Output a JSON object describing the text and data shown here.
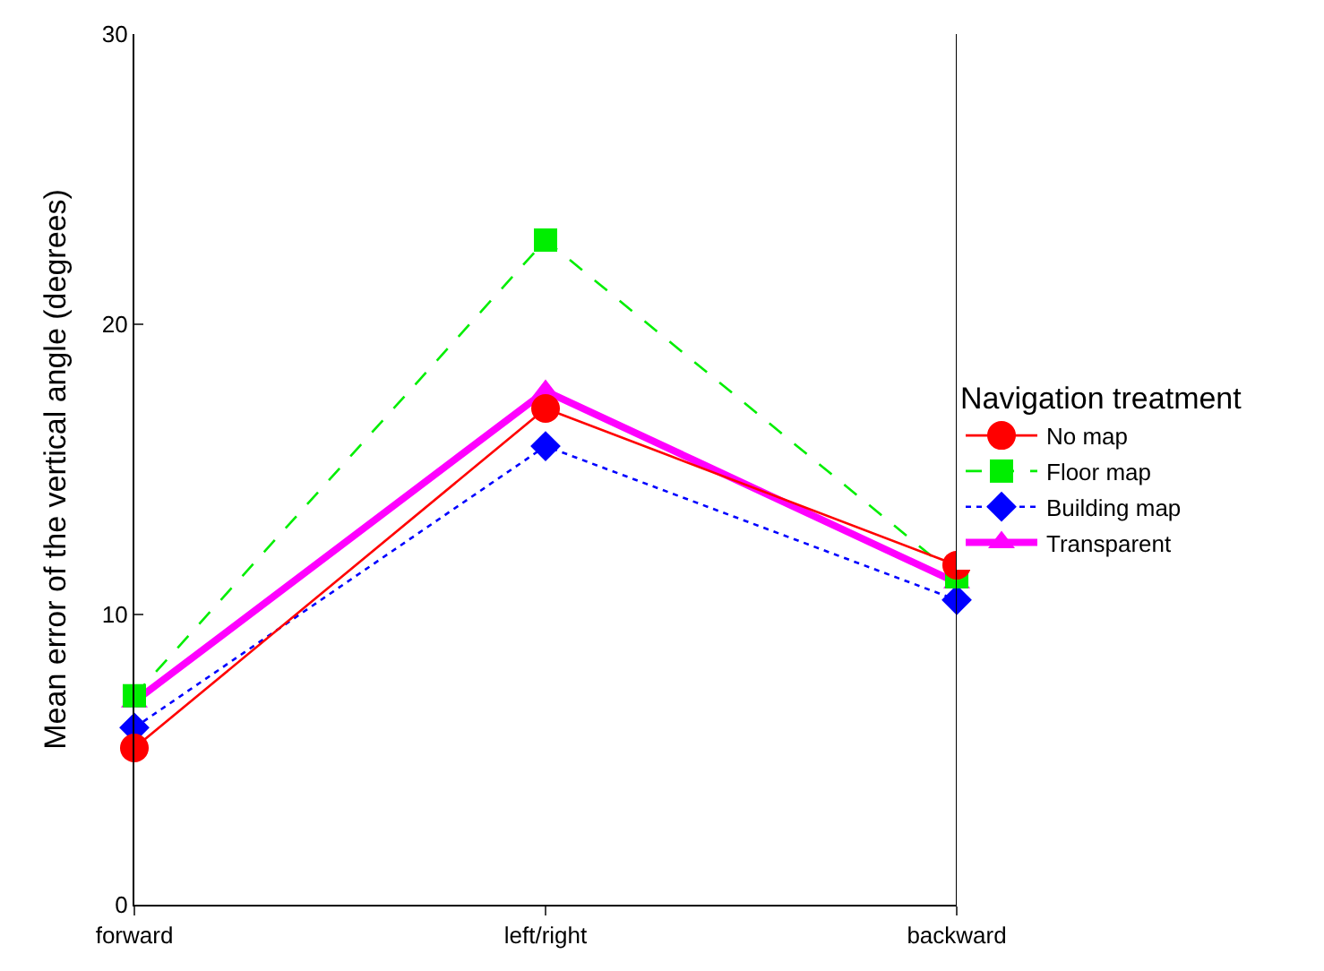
{
  "chart_data": {
    "type": "line",
    "ylabel": "Mean error of the vertical angle (degrees)",
    "legend_title": "Navigation treatment",
    "categories": [
      "forward",
      "left/right",
      "backward"
    ],
    "series": [
      {
        "name": "No map",
        "color": "#ff0000",
        "values": [
          5.4,
          17.1,
          11.7
        ],
        "marker": "circle",
        "line_style": "solid"
      },
      {
        "name": "Floor map",
        "color": "#00ee00",
        "values": [
          7.2,
          22.9,
          11.3
        ],
        "marker": "square",
        "line_style": "dashed"
      },
      {
        "name": "Building map",
        "color": "#0000ff",
        "values": [
          6.1,
          15.8,
          10.5
        ],
        "marker": "diamond",
        "line_style": "dotted"
      },
      {
        "name": "Transparent",
        "color": "#ff00ff",
        "values": [
          7.0,
          17.7,
          11.1
        ],
        "marker": "triangle",
        "line_style": "solid"
      }
    ],
    "ylim": [
      0,
      30
    ],
    "yticks": [
      0,
      10,
      20,
      30
    ],
    "legend": "right"
  }
}
